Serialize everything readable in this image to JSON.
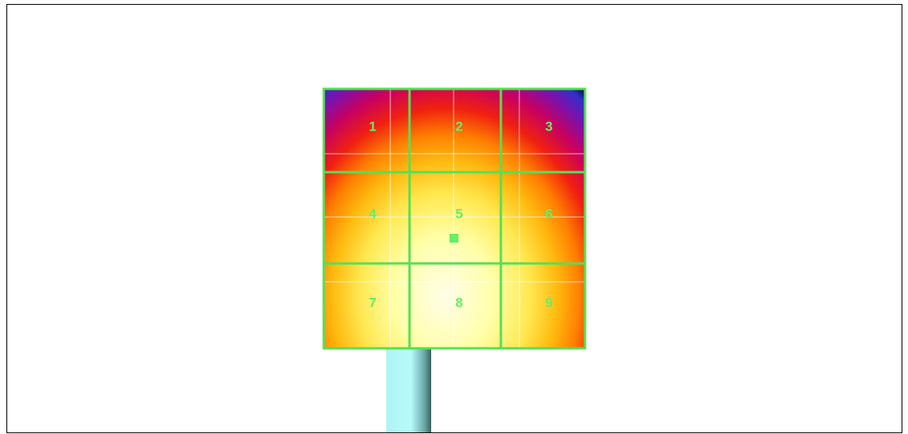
{
  "grid": {
    "labels": [
      "1",
      "2",
      "3",
      "4",
      "5",
      "6",
      "7",
      "8",
      "9"
    ]
  }
}
